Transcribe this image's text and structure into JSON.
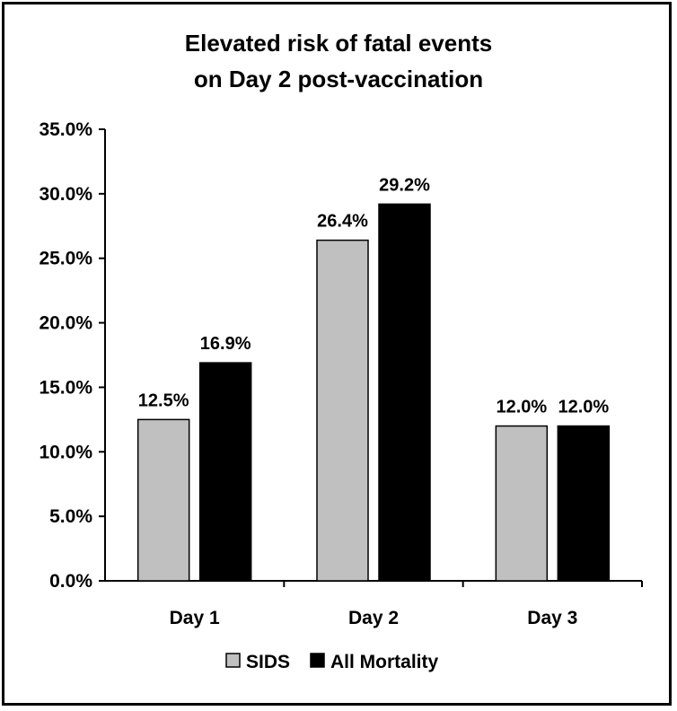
{
  "chart_data": {
    "type": "bar",
    "title": [
      "Elevated risk of fatal events",
      "on Day 2 post-vaccination"
    ],
    "categories": [
      "Day 1",
      "Day 2",
      "Day 3"
    ],
    "series": [
      {
        "name": "SIDS",
        "values": [
          12.5,
          26.4,
          12.0
        ],
        "labels": [
          "12.5%",
          "26.4%",
          "12.0%"
        ],
        "color": "#c0c0c0"
      },
      {
        "name": "All Mortality",
        "values": [
          16.9,
          29.2,
          12.0
        ],
        "labels": [
          "16.9%",
          "29.2%",
          "12.0%"
        ],
        "color": "#000000"
      }
    ],
    "ylim": [
      0,
      35
    ],
    "yticks": [
      0,
      5,
      10,
      15,
      20,
      25,
      30,
      35
    ],
    "ytick_labels": [
      "0.0%",
      "5.0%",
      "10.0%",
      "15.0%",
      "20.0%",
      "25.0%",
      "30.0%",
      "35.0%"
    ],
    "xlabel": "",
    "ylabel": "",
    "grid": false,
    "legend": "bottom-center"
  }
}
